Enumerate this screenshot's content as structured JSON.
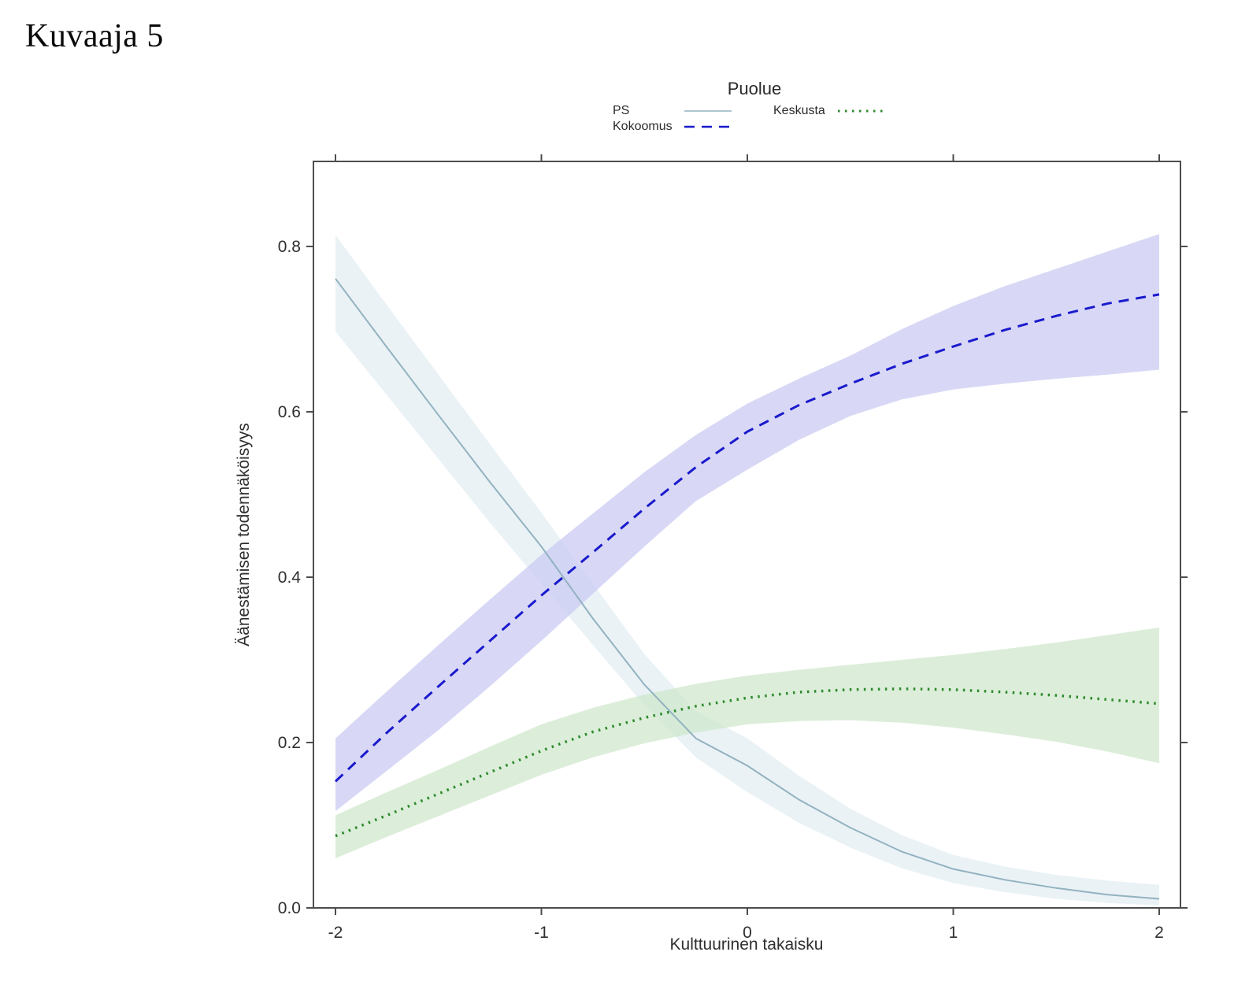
{
  "page": {
    "title": "Kuvaaja 5"
  },
  "legend": {
    "title": "Puolue",
    "items": [
      {
        "label": "PS"
      },
      {
        "label": "Kokoomus"
      },
      {
        "label": "Keskusta"
      }
    ]
  },
  "chart_data": {
    "type": "line",
    "title": "Kuvaaja 5",
    "xlabel": "Kulttuurinen takaisku",
    "ylabel": "Äänestämisen todennäköisyys",
    "xlim": [
      -2.1,
      2.1
    ],
    "ylim": [
      0.0,
      0.9
    ],
    "grid": false,
    "legend_position": "top-center",
    "legend_title": "Puolue",
    "xticks": {
      "values": [
        -2,
        -1,
        0,
        1,
        2
      ],
      "labels": [
        "-2",
        "-1",
        "0",
        "1",
        "2"
      ]
    },
    "yticks": {
      "values": [
        0.0,
        0.2,
        0.4,
        0.6,
        0.8
      ],
      "labels": [
        "0.0",
        "0.2",
        "0.4",
        "0.6",
        "0.8"
      ]
    },
    "x": [
      -2,
      -1.75,
      -1.5,
      -1.25,
      -1,
      -0.75,
      -0.5,
      -0.25,
      0,
      0.25,
      0.5,
      0.75,
      1,
      1.25,
      1.5,
      1.75,
      2
    ],
    "series": [
      {
        "name": "PS",
        "color": "#93B2C0",
        "dash": "solid",
        "band_color": "#D9E7EE",
        "band_opacity": 0.55,
        "y": [
          0.761,
          0.678,
          0.596,
          0.515,
          0.437,
          0.35,
          0.27,
          0.205,
          0.172,
          0.131,
          0.097,
          0.068,
          0.047,
          0.034,
          0.024,
          0.016,
          0.011
        ],
        "upper": [
          0.814,
          0.729,
          0.645,
          0.561,
          0.478,
          0.392,
          0.307,
          0.238,
          0.205,
          0.16,
          0.12,
          0.088,
          0.064,
          0.05,
          0.04,
          0.033,
          0.028
        ],
        "lower": [
          0.697,
          0.62,
          0.543,
          0.466,
          0.392,
          0.318,
          0.245,
          0.182,
          0.14,
          0.103,
          0.073,
          0.048,
          0.03,
          0.019,
          0.011,
          0.006,
          0.003
        ]
      },
      {
        "name": "Kokoomus",
        "color": "#1A1ACD",
        "dash": "dashed",
        "band_color": "#C9C9F3",
        "band_opacity": 0.72,
        "y": [
          0.153,
          0.212,
          0.268,
          0.323,
          0.378,
          0.43,
          0.483,
          0.533,
          0.576,
          0.608,
          0.634,
          0.658,
          0.679,
          0.699,
          0.716,
          0.731,
          0.742
        ],
        "upper": [
          0.205,
          0.262,
          0.318,
          0.373,
          0.427,
          0.477,
          0.527,
          0.572,
          0.61,
          0.64,
          0.668,
          0.7,
          0.728,
          0.752,
          0.773,
          0.794,
          0.815
        ],
        "lower": [
          0.117,
          0.166,
          0.215,
          0.268,
          0.323,
          0.38,
          0.437,
          0.492,
          0.53,
          0.566,
          0.595,
          0.615,
          0.627,
          0.634,
          0.64,
          0.645,
          0.651
        ]
      },
      {
        "name": "Keskusta",
        "color": "#2E8B2E",
        "dash": "dotted",
        "band_color": "#CFE7CB",
        "band_opacity": 0.72,
        "y": [
          0.087,
          0.112,
          0.138,
          0.164,
          0.19,
          0.213,
          0.23,
          0.244,
          0.254,
          0.261,
          0.264,
          0.265,
          0.264,
          0.261,
          0.257,
          0.252,
          0.247
        ],
        "upper": [
          0.112,
          0.14,
          0.167,
          0.195,
          0.222,
          0.242,
          0.258,
          0.271,
          0.281,
          0.288,
          0.294,
          0.3,
          0.306,
          0.313,
          0.321,
          0.33,
          0.339
        ],
        "lower": [
          0.06,
          0.086,
          0.111,
          0.136,
          0.161,
          0.182,
          0.199,
          0.212,
          0.222,
          0.226,
          0.227,
          0.224,
          0.218,
          0.21,
          0.201,
          0.189,
          0.175
        ]
      }
    ]
  }
}
